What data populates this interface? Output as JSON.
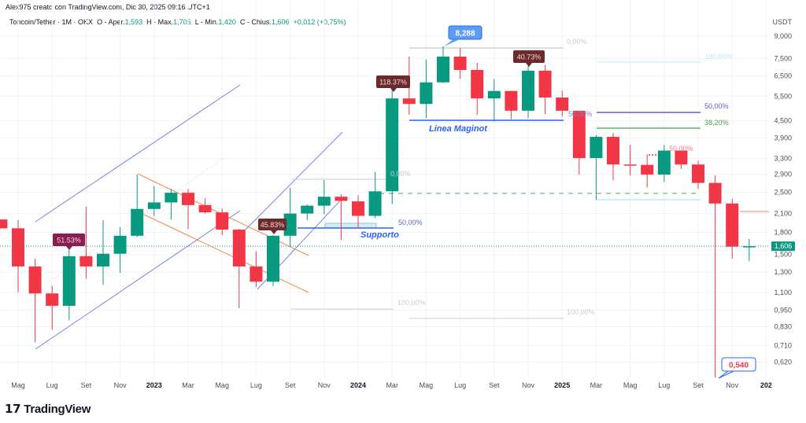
{
  "header": {
    "credit": "Alex975 creato con TradingView.com, Dic 30, 2025 09:16 UTC+1",
    "symbol": "Toncoin/Tether · 1M · OKX",
    "open_label": "O - Aper.",
    "open": "1,593",
    "high_label": "H - Max.",
    "high": "1,705",
    "low_label": "L - Min.",
    "low": "1,420",
    "close_label": "C - Chius.",
    "close": "1,606",
    "change": "+0,012 (+0,75%)"
  },
  "brand": {
    "logo": "TV",
    "name": "TradingView"
  },
  "colors": {
    "up": "#089981",
    "down": "#f23645",
    "grid": "#f0f3fa",
    "channel": "#7b83dd",
    "orange": "#f0894a"
  },
  "chart_data": {
    "type": "candlestick",
    "title": "Toncoin/Tether · 1M · OKX",
    "ylabel": "USDT",
    "yscale": "log",
    "ylim": [
      0.54,
      9.6
    ],
    "yticks": [
      "9,000",
      "7,500",
      "6,500",
      "5,500",
      "4,500",
      "3,900",
      "3,300",
      "2,900",
      "2,500",
      "2,100",
      "1,800",
      "1,500",
      "1,300",
      "1,100",
      "0,950",
      "0,830",
      "0,710",
      "0,620"
    ],
    "ytick_values": [
      9.0,
      7.5,
      6.5,
      5.5,
      4.5,
      3.9,
      3.3,
      2.9,
      2.5,
      2.1,
      1.8,
      1.5,
      1.3,
      1.1,
      0.95,
      0.83,
      0.71,
      0.62
    ],
    "xticks": [
      {
        "label": "Mag",
        "m": 0
      },
      {
        "label": "Lug",
        "m": 2
      },
      {
        "label": "Set",
        "m": 4
      },
      {
        "label": "Nov",
        "m": 6
      },
      {
        "label": "2023",
        "m": 8,
        "bold": true
      },
      {
        "label": "Mar",
        "m": 10
      },
      {
        "label": "Mag",
        "m": 12
      },
      {
        "label": "Lug",
        "m": 14
      },
      {
        "label": "Set",
        "m": 16
      },
      {
        "label": "Nov",
        "m": 18
      },
      {
        "label": "2024",
        "m": 20,
        "bold": true
      },
      {
        "label": "Mar",
        "m": 22
      },
      {
        "label": "Mag",
        "m": 24
      },
      {
        "label": "Lug",
        "m": 26
      },
      {
        "label": "Set",
        "m": 28
      },
      {
        "label": "Nov",
        "m": 30
      },
      {
        "label": "2025",
        "m": 32,
        "bold": true
      },
      {
        "label": "Mar",
        "m": 34
      },
      {
        "label": "Mag",
        "m": 36
      },
      {
        "label": "Lug",
        "m": 38
      },
      {
        "label": "Set",
        "m": 40
      },
      {
        "label": "Nov",
        "m": 42
      },
      {
        "label": "202",
        "m": 44,
        "bold": true
      }
    ],
    "candles_ohlc": [
      [
        "2022-04",
        2.0,
        2.0,
        1.86,
        1.86
      ],
      [
        "2022-05",
        1.86,
        1.99,
        1.1,
        1.36
      ],
      [
        "2022-06",
        1.36,
        1.45,
        0.73,
        1.09
      ],
      [
        "2022-07",
        1.09,
        1.16,
        0.81,
        0.985
      ],
      [
        "2022-08",
        0.985,
        1.56,
        0.875,
        1.48
      ],
      [
        "2022-09",
        1.48,
        2.22,
        1.23,
        1.36
      ],
      [
        "2022-10",
        1.36,
        1.99,
        1.17,
        1.51
      ],
      [
        "2022-11",
        1.51,
        1.88,
        1.29,
        1.75
      ],
      [
        "2022-12",
        1.75,
        2.89,
        1.73,
        2.18
      ],
      [
        "2023-01",
        2.18,
        2.63,
        2.06,
        2.3
      ],
      [
        "2023-02",
        2.3,
        2.57,
        2.0,
        2.49
      ],
      [
        "2023-03",
        2.49,
        2.57,
        1.85,
        2.25
      ],
      [
        "2023-04",
        2.25,
        2.38,
        2.1,
        2.12
      ],
      [
        "2023-05",
        2.12,
        2.19,
        1.76,
        1.84
      ],
      [
        "2023-06",
        1.84,
        1.85,
        0.965,
        1.36
      ],
      [
        "2023-07",
        1.36,
        1.54,
        1.15,
        1.2
      ],
      [
        "2023-08",
        1.2,
        1.76,
        1.16,
        1.75
      ],
      [
        "2023-09",
        1.75,
        2.59,
        1.6,
        2.1
      ],
      [
        "2023-10",
        2.1,
        2.26,
        1.99,
        2.24
      ],
      [
        "2023-11",
        2.24,
        2.76,
        2.09,
        2.41
      ],
      [
        "2023-12",
        2.41,
        2.46,
        1.69,
        2.33
      ],
      [
        "2024-01",
        2.32,
        2.44,
        1.86,
        2.06
      ],
      [
        "2024-02",
        2.06,
        2.95,
        2.02,
        2.52
      ],
      [
        "2024-03",
        2.52,
        5.79,
        2.27,
        5.4
      ],
      [
        "2024-04",
        5.4,
        7.61,
        4.72,
        5.16
      ],
      [
        "2024-05",
        5.16,
        7.44,
        4.6,
        6.16
      ],
      [
        "2024-06",
        6.16,
        8.288,
        6.12,
        7.61
      ],
      [
        "2024-07",
        7.61,
        8.16,
        6.35,
        6.82
      ],
      [
        "2024-08",
        6.82,
        7.23,
        4.72,
        5.4
      ],
      [
        "2024-09",
        5.4,
        6.33,
        4.47,
        5.74
      ],
      [
        "2024-10",
        5.74,
        5.76,
        4.56,
        4.88
      ],
      [
        "2024-11",
        4.88,
        7.05,
        4.6,
        6.78
      ],
      [
        "2024-12",
        6.78,
        7.1,
        4.75,
        5.44
      ],
      [
        "2025-01",
        5.44,
        5.76,
        4.65,
        4.88
      ],
      [
        "2025-02",
        4.88,
        4.88,
        2.89,
        3.31
      ],
      [
        "2025-03",
        3.31,
        4.0,
        2.35,
        3.94
      ],
      [
        "2025-04",
        3.94,
        4.07,
        2.76,
        3.14
      ],
      [
        "2025-05",
        3.14,
        3.69,
        2.87,
        3.13
      ],
      [
        "2025-06",
        3.13,
        3.41,
        2.6,
        2.89
      ],
      [
        "2025-07",
        2.89,
        3.69,
        2.72,
        3.52
      ],
      [
        "2025-08",
        3.52,
        3.52,
        3.03,
        3.14
      ],
      [
        "2025-09",
        3.14,
        3.24,
        2.57,
        2.7
      ],
      [
        "2025-10",
        2.7,
        2.87,
        0.54,
        2.28
      ],
      [
        "2025-11",
        2.28,
        2.37,
        1.45,
        1.6
      ],
      [
        "2025-12",
        1.593,
        1.705,
        1.42,
        1.606
      ]
    ],
    "last_price": {
      "value": 1.606,
      "label": "1,606"
    },
    "annotations": {
      "pct_51": "51.53%",
      "pct_45": "45.83%",
      "pct_118": "118.37%",
      "pct_40": "40.73%",
      "ath": "8,288",
      "low_2025": "0,540",
      "maginot": "Linea Maginot",
      "supporto": "Supporto",
      "fib_50_supporto": "50,00%",
      "fib_0_top": "0,00%",
      "fib_0_mid": "0,00%",
      "fib_100_a": "100,00%",
      "fib_100_b": "100,00%",
      "fib_right_100": "100,00%",
      "fib_right_50": "50,00%",
      "fib_right_382": "38,20%",
      "fib_left_50": "50,00%",
      "fib_red_50": "50,00%"
    }
  }
}
